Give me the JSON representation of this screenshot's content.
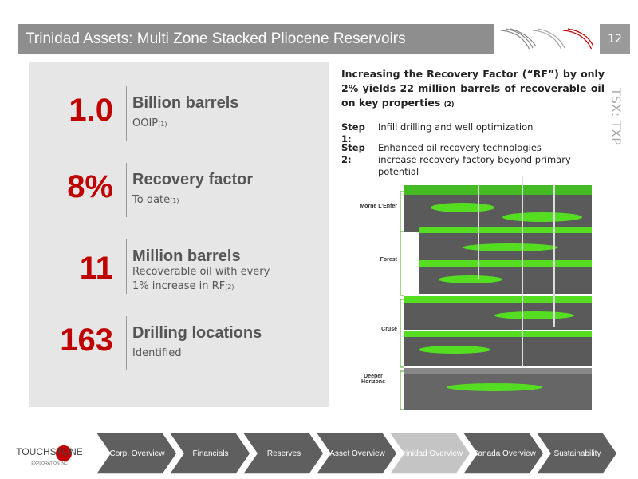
{
  "header": {
    "title": "Trinidad Assets: Multi Zone Stacked Pliocene Reservoirs",
    "page": "12"
  },
  "ticker": "TSX: TXP",
  "stats": [
    {
      "value": "1.0",
      "label": "Billion barrels",
      "sub": "OOIP",
      "note": "(1)"
    },
    {
      "value": "8%",
      "label": "Recovery factor",
      "sub": "To date",
      "note": "(1)"
    },
    {
      "value": "11",
      "label": "Million barrels",
      "sub": "Recoverable oil with every 1% increase in RF",
      "note": "(2)"
    },
    {
      "value": "163",
      "label": "Drilling locations",
      "sub": "Identified"
    }
  ],
  "headline": {
    "text": "Increasing the Recovery Factor (“RF”) by only 2% yields 22 million barrels of recoverable oil on key properties",
    "note": "(2)"
  },
  "steps": [
    {
      "label": "Step 1:",
      "text": "Infill drilling and well optimization"
    },
    {
      "label": "Step 2:",
      "text": "Enhanced oil recovery technologies increase recovery factory beyond primary potential"
    }
  ],
  "zones": [
    "Morne L’Enfer",
    "Forest",
    "Cruse",
    "Deeper Horizons"
  ],
  "logo": {
    "name": "TOUCHSTONE",
    "tagline": "EXPLORATION INC"
  },
  "nav": [
    "Corp. Overview",
    "Financials",
    "Reserves",
    "Asset Overview",
    "Trinidad Overview",
    "Canada Overview",
    "Sustainability"
  ]
}
